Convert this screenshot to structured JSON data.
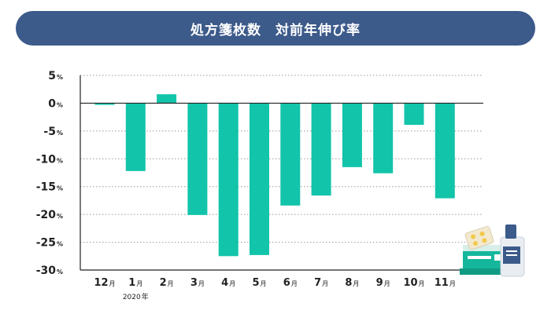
{
  "title": "処方箋枚数　対前年伸び率",
  "colors": {
    "banner": "#3c5a8a",
    "bar": "#12c4aa",
    "axis": "#222222",
    "grid": "#9a9a9a"
  },
  "decor_icon": "medicine-bottle-and-pills-icon",
  "chart_data": {
    "type": "bar",
    "title": "",
    "xlabel": "",
    "ylabel": "",
    "ylim": [
      -30,
      5
    ],
    "yticks": [
      5,
      0,
      -5,
      -10,
      -15,
      -20,
      -25,
      -30
    ],
    "ytick_unit": "%",
    "grid": "dotted-horizontal",
    "categories": [
      "12月",
      "1月",
      "2月",
      "3月",
      "4月",
      "5月",
      "6月",
      "7月",
      "8月",
      "9月",
      "10月",
      "11月"
    ],
    "tick_numbers": [
      "12",
      "1",
      "2",
      "3",
      "4",
      "5",
      "6",
      "7",
      "8",
      "9",
      "10",
      "11"
    ],
    "tick_unit": "月",
    "year_annotation": {
      "category": "1月",
      "text": "2020",
      "unit": "年"
    },
    "values": [
      -0.3,
      -12.2,
      1.6,
      -20.1,
      -27.5,
      -27.3,
      -18.4,
      -16.6,
      -11.5,
      -12.6,
      -3.9,
      -17.1
    ]
  }
}
